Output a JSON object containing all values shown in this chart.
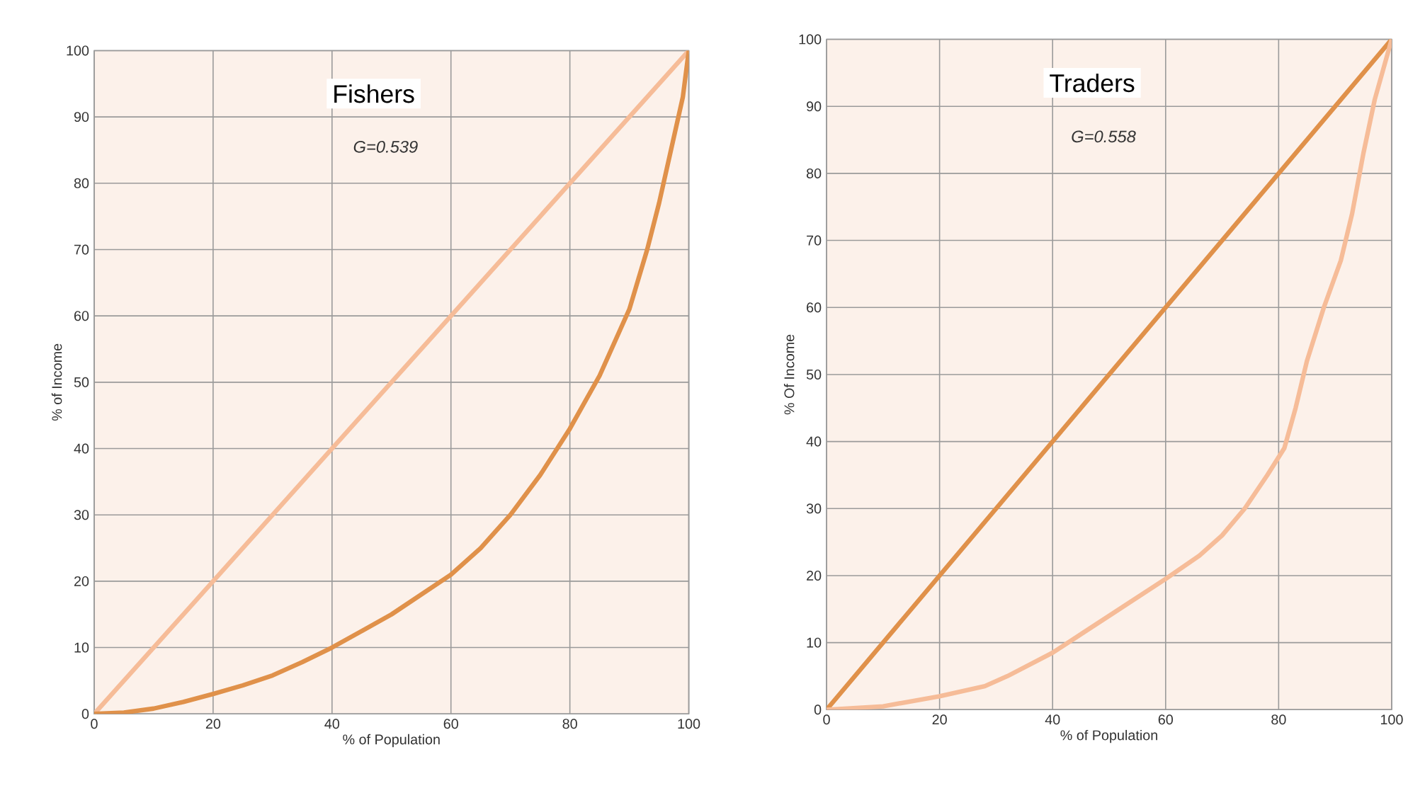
{
  "chart_data": [
    {
      "type": "line",
      "title": "Fishers",
      "annotations": [
        "*G=0.539*"
      ],
      "xlabel": "% of Population",
      "ylabel": "% of Income",
      "xlim": [
        0,
        100
      ],
      "ylim": [
        0,
        100
      ],
      "xticks": [
        0,
        20,
        40,
        60,
        80,
        100
      ],
      "yticks": [
        0,
        10,
        20,
        30,
        40,
        50,
        60,
        70,
        80,
        90,
        100
      ],
      "grid": true,
      "marker": "none",
      "line_style": "solid",
      "series": [
        {
          "color": "#f6bc98",
          "x": [
            0,
            100
          ],
          "values": [
            0,
            100
          ]
        },
        {
          "color": "#e0914a",
          "x": [
            0,
            5,
            10,
            15,
            20,
            25,
            30,
            35,
            40,
            45,
            50,
            55,
            60,
            65,
            70,
            75,
            80,
            85,
            90,
            93,
            95,
            97,
            99,
            100
          ],
          "values": [
            0,
            0.2,
            0.8,
            1.8,
            3,
            4.3,
            5.8,
            7.8,
            10,
            12.5,
            15,
            18,
            21,
            25,
            30,
            36,
            43,
            51,
            61,
            70,
            77,
            85,
            93,
            100
          ]
        }
      ]
    },
    {
      "type": "line",
      "title": "Traders",
      "annotations": [
        "*G=0.558*"
      ],
      "xlabel": "% of Population",
      "ylabel": "% Of Income",
      "xlim": [
        0,
        100
      ],
      "ylim": [
        0,
        100
      ],
      "xticks": [
        0,
        20,
        40,
        60,
        80,
        100
      ],
      "yticks": [
        0,
        10,
        20,
        30,
        40,
        50,
        60,
        70,
        80,
        90,
        100
      ],
      "grid": true,
      "marker": "none",
      "line_style": "solid",
      "series": [
        {
          "color": "#e0914a",
          "x": [
            0,
            100
          ],
          "values": [
            0,
            100
          ]
        },
        {
          "color": "#f6bc98",
          "x": [
            0,
            10,
            20,
            28,
            32,
            40,
            50,
            60,
            66,
            70,
            74,
            78,
            81,
            83,
            85,
            88,
            91,
            93,
            95,
            97,
            100
          ],
          "values": [
            0,
            0.5,
            2,
            3.5,
            5,
            8.5,
            14,
            19.5,
            23,
            26,
            30,
            35,
            39,
            45,
            52,
            60,
            67,
            74,
            83,
            91,
            100
          ]
        }
      ]
    }
  ]
}
